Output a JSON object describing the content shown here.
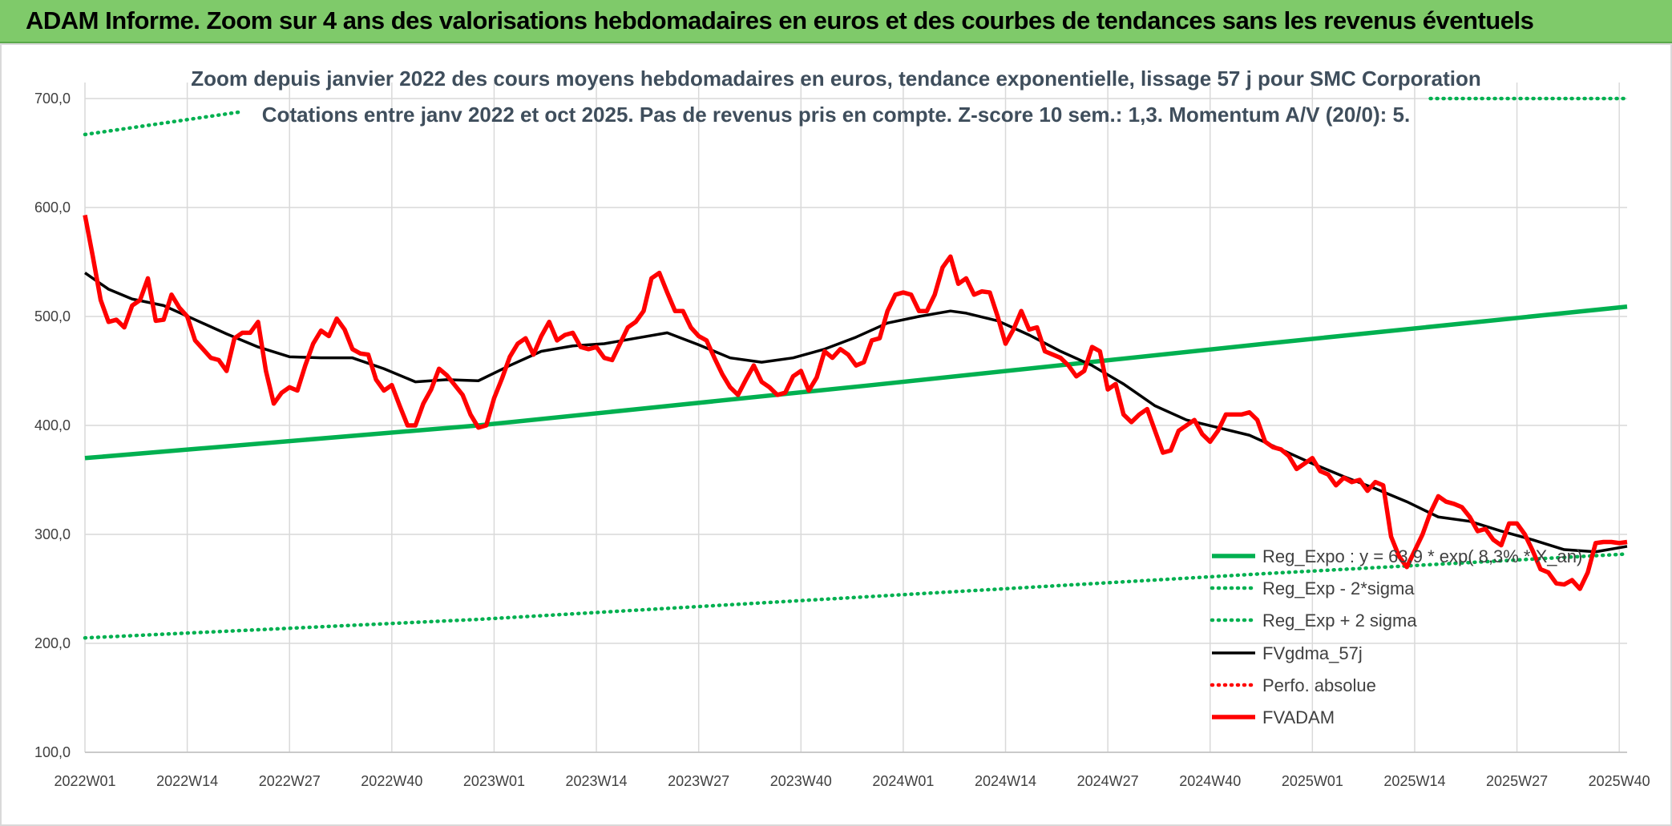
{
  "banner": {
    "title": "ADAM Informe. Zoom sur 4 ans des valorisations hebdomadaires en euros et des courbes de tendances sans les revenus éventuels"
  },
  "colors": {
    "banner_bg": "#7fca6a",
    "green": "#00b050",
    "red": "#ff0000",
    "black": "#000000",
    "grid": "#d9d9d9",
    "subtitle": "#3f4e5c"
  },
  "chart_data": {
    "type": "line",
    "title": "Zoom depuis janvier 2022 des cours moyens hebdomadaires en euros, tendance exponentielle, lissage 57 j pour SMC Corporation",
    "subtitle": "Cotations entre janv 2022 et oct 2025. Pas de revenus pris en compte. Z-score 10 sem.: 1,3. Momentum A/V (20/0): 5.",
    "xlabel": "",
    "ylabel": "",
    "ylim": [
      100,
      700
    ],
    "y_ticks": [
      100,
      200,
      300,
      400,
      500,
      600,
      700
    ],
    "y_tick_labels": [
      "100,0",
      "200,0",
      "300,0",
      "400,0",
      "500,0",
      "600,0",
      "700,0"
    ],
    "x_range": [
      0,
      196
    ],
    "x_ticks": [
      0,
      13,
      26,
      39,
      52,
      65,
      78,
      91,
      104,
      117,
      130,
      143,
      156,
      169,
      182,
      195
    ],
    "x_tick_labels": [
      "2022W01",
      "2022W14",
      "2022W27",
      "2022W40",
      "2023W01",
      "2023W14",
      "2023W27",
      "2023W40",
      "2024W01",
      "2024W14",
      "2024W27",
      "2024W40",
      "2025W01",
      "2025W14",
      "2025W27",
      "2025W40"
    ],
    "grid": true,
    "legend_position": "bottom-right",
    "series": [
      {
        "name": "Reg_Expo : y = 63,9 * exp( 8,3% * X_an)",
        "style": "solid-thick",
        "color": "#00b050",
        "x": [
          0,
          50,
          100,
          150,
          196
        ],
        "values": [
          370,
          400,
          437,
          475,
          509
        ]
      },
      {
        "name": "Reg_Exp - 2*sigma",
        "style": "dotted",
        "color": "#00b050",
        "x": [
          0,
          50,
          100,
          150,
          196
        ],
        "values": [
          205,
          222,
          243,
          264,
          282
        ]
      },
      {
        "name": "Reg_Exp + 2 sigma",
        "style": "dotted",
        "color": "#00b050",
        "x": [
          0,
          20,
          196
        ],
        "values": [
          667,
          688,
          700
        ]
      },
      {
        "name": "FVgdma_57j",
        "style": "solid",
        "color": "#000000",
        "x": [
          0,
          3,
          6,
          10,
          14,
          18,
          22,
          26,
          30,
          34,
          38,
          42,
          46,
          50,
          54,
          58,
          62,
          66,
          70,
          74,
          78,
          82,
          86,
          90,
          94,
          98,
          102,
          106,
          110,
          112,
          116,
          120,
          124,
          128,
          132,
          136,
          140,
          144,
          148,
          152,
          156,
          160,
          164,
          168,
          172,
          176,
          180,
          184,
          188,
          192,
          196
        ],
        "values": [
          540,
          525,
          516,
          510,
          497,
          484,
          472,
          463,
          462,
          462,
          452,
          440,
          442,
          441,
          455,
          468,
          473,
          475,
          480,
          485,
          474,
          462,
          458,
          462,
          470,
          481,
          494,
          500,
          505,
          503,
          496,
          483,
          468,
          455,
          438,
          418,
          405,
          398,
          391,
          378,
          365,
          353,
          342,
          330,
          316,
          312,
          303,
          295,
          286,
          284,
          289
        ]
      },
      {
        "name": "Perfo. absolue",
        "style": "dotted",
        "color": "#ff0000",
        "x": [],
        "values": []
      },
      {
        "name": "FVADAM",
        "style": "solid-thick",
        "color": "#ff0000",
        "x": [
          0,
          1,
          2,
          3,
          4,
          5,
          6,
          7,
          8,
          9,
          10,
          11,
          12,
          13,
          14,
          15,
          16,
          17,
          18,
          19,
          20,
          21,
          22,
          23,
          24,
          25,
          26,
          27,
          28,
          29,
          30,
          31,
          32,
          33,
          34,
          35,
          36,
          37,
          38,
          39,
          40,
          41,
          42,
          43,
          44,
          45,
          46,
          47,
          48,
          49,
          50,
          51,
          52,
          53,
          54,
          55,
          56,
          57,
          58,
          59,
          60,
          61,
          62,
          63,
          64,
          65,
          66,
          67,
          68,
          69,
          70,
          71,
          72,
          73,
          74,
          75,
          76,
          77,
          78,
          79,
          80,
          81,
          82,
          83,
          84,
          85,
          86,
          87,
          88,
          89,
          90,
          91,
          92,
          93,
          94,
          95,
          96,
          97,
          98,
          99,
          100,
          101,
          102,
          103,
          104,
          105,
          106,
          107,
          108,
          109,
          110,
          111,
          112,
          113,
          114,
          115,
          116,
          117,
          118,
          119,
          120,
          121,
          122,
          123,
          124,
          125,
          126,
          127,
          128,
          129,
          130,
          131,
          132,
          133,
          134,
          135,
          136,
          137,
          138,
          139,
          140,
          141,
          142,
          143,
          144,
          145,
          146,
          147,
          148,
          149,
          150,
          151,
          152,
          153,
          154,
          155,
          156,
          157,
          158,
          159,
          160,
          161,
          162,
          163,
          164,
          165,
          166,
          167,
          168,
          169,
          170,
          171,
          172,
          173,
          174,
          175,
          176,
          177,
          178,
          179,
          180,
          181,
          182,
          183,
          184,
          185,
          186,
          187,
          188,
          189,
          190,
          191,
          192,
          193,
          194,
          195,
          196
        ],
        "values": [
          593,
          555,
          515,
          495,
          497,
          490,
          510,
          515,
          535,
          496,
          497,
          520,
          508,
          500,
          478,
          470,
          462,
          460,
          450,
          480,
          485,
          485,
          495,
          450,
          420,
          430,
          435,
          432,
          455,
          475,
          487,
          482,
          498,
          488,
          470,
          466,
          465,
          442,
          432,
          437,
          418,
          400,
          400,
          420,
          433,
          452,
          446,
          437,
          428,
          410,
          398,
          400,
          425,
          443,
          463,
          475,
          480,
          465,
          482,
          495,
          478,
          483,
          485,
          472,
          470,
          472,
          462,
          460,
          475,
          490,
          495,
          505,
          535,
          540,
          522,
          505,
          505,
          490,
          482,
          478,
          462,
          447,
          435,
          428,
          442,
          455,
          440,
          435,
          428,
          430,
          445,
          450,
          432,
          444,
          468,
          462,
          470,
          465,
          455,
          458,
          478,
          480,
          505,
          520,
          522,
          520,
          505,
          505,
          520,
          545,
          555,
          530,
          535,
          520,
          523,
          522,
          500,
          475,
          488,
          505,
          488,
          490,
          468,
          465,
          462,
          455,
          445,
          450,
          472,
          468,
          433,
          438,
          410,
          403,
          410,
          415,
          395,
          375,
          377,
          395,
          400,
          405,
          392,
          385,
          395,
          410,
          410,
          410,
          412,
          405,
          385,
          380,
          378,
          372,
          360,
          365,
          370,
          358,
          355,
          345,
          352,
          348,
          350,
          340,
          348,
          345,
          298,
          280,
          270,
          285,
          300,
          320,
          335,
          330,
          328,
          325,
          316,
          303,
          305,
          295,
          290,
          310,
          310,
          300,
          285,
          268,
          265,
          255,
          254,
          258,
          250,
          265,
          292,
          293,
          293,
          292,
          293
        ]
      }
    ]
  }
}
